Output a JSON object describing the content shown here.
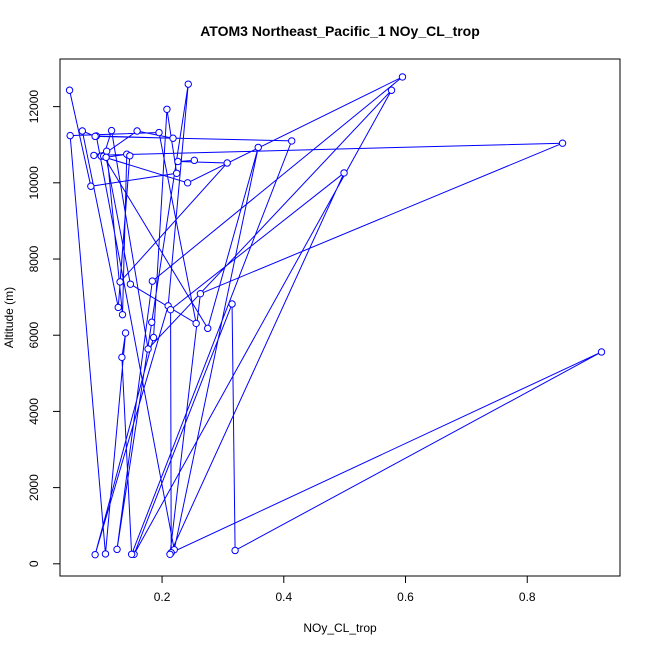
{
  "chart_data": {
    "type": "line",
    "title": "ATOM3 Northeast_Pacific_1 NOy_CL_trop",
    "xlabel": "NOy_CL_trop",
    "ylabel": "Altitude (m)",
    "xlim": [
      0.0323,
      0.9524
    ],
    "ylim": [
      -320,
      13250
    ],
    "x_ticks": [
      0.2,
      0.4,
      0.6,
      0.8
    ],
    "x_tick_labels": [
      "0.2",
      "0.4",
      "0.6",
      "0.8"
    ],
    "y_ticks": [
      0,
      2000,
      4000,
      6000,
      8000,
      10000,
      12000
    ],
    "y_tick_labels": [
      "0",
      "2000",
      "4000",
      "6000",
      "8000",
      "10000",
      "12000"
    ],
    "grid": false,
    "legend": "none",
    "series": [
      {
        "color": "#0000ff",
        "marker": "open-circle",
        "points": [
          [
            0.048,
            12430
          ],
          [
            0.083,
            9910
          ],
          [
            0.224,
            10250
          ],
          [
            0.208,
            11930
          ],
          [
            0.186,
            5940
          ],
          [
            0.09,
            240
          ],
          [
            0.21,
            6770
          ],
          [
            0.243,
            12590
          ],
          [
            0.183,
            6340
          ],
          [
            0.126,
            380
          ],
          [
            0.184,
            7420
          ],
          [
            0.595,
            12780
          ],
          [
            0.242,
            10000
          ],
          [
            0.1,
            10700
          ],
          [
            0.159,
            11360
          ],
          [
            0.218,
            11170
          ],
          [
            0.092,
            11230
          ],
          [
            0.22,
            370
          ],
          [
            0.358,
            10930
          ],
          [
            0.275,
            6180
          ],
          [
            0.104,
            10700
          ],
          [
            0.117,
            11370
          ],
          [
            0.177,
            5640
          ],
          [
            0.577,
            12430
          ],
          [
            0.154,
            250
          ],
          [
            0.315,
            6820
          ],
          [
            0.32,
            350
          ],
          [
            0.922,
            5560
          ],
          [
            0.215,
            290
          ],
          [
            0.214,
            6670
          ],
          [
            0.499,
            10260
          ],
          [
            0.213,
            250
          ],
          [
            0.263,
            7090
          ],
          [
            0.858,
            11040
          ],
          [
            0.088,
            10720
          ],
          [
            0.109,
            10830
          ],
          [
            0.135,
            6540
          ],
          [
            0.142,
            10750
          ],
          [
            0.108,
            10670
          ],
          [
            0.148,
            7340
          ],
          [
            0.256,
            6310
          ],
          [
            0.195,
            11320
          ],
          [
            0.049,
            11240
          ],
          [
            0.107,
            260
          ],
          [
            0.14,
            6060
          ],
          [
            0.134,
            5420
          ],
          [
            0.15,
            250
          ],
          [
            0.413,
            11100
          ],
          [
            0.09,
            11220
          ],
          [
            0.069,
            11360
          ],
          [
            0.128,
            6730
          ],
          [
            0.147,
            10710
          ],
          [
            0.131,
            7400
          ],
          [
            0.307,
            10520
          ],
          [
            0.226,
            10560
          ],
          [
            0.253,
            10590
          ]
        ]
      }
    ]
  }
}
